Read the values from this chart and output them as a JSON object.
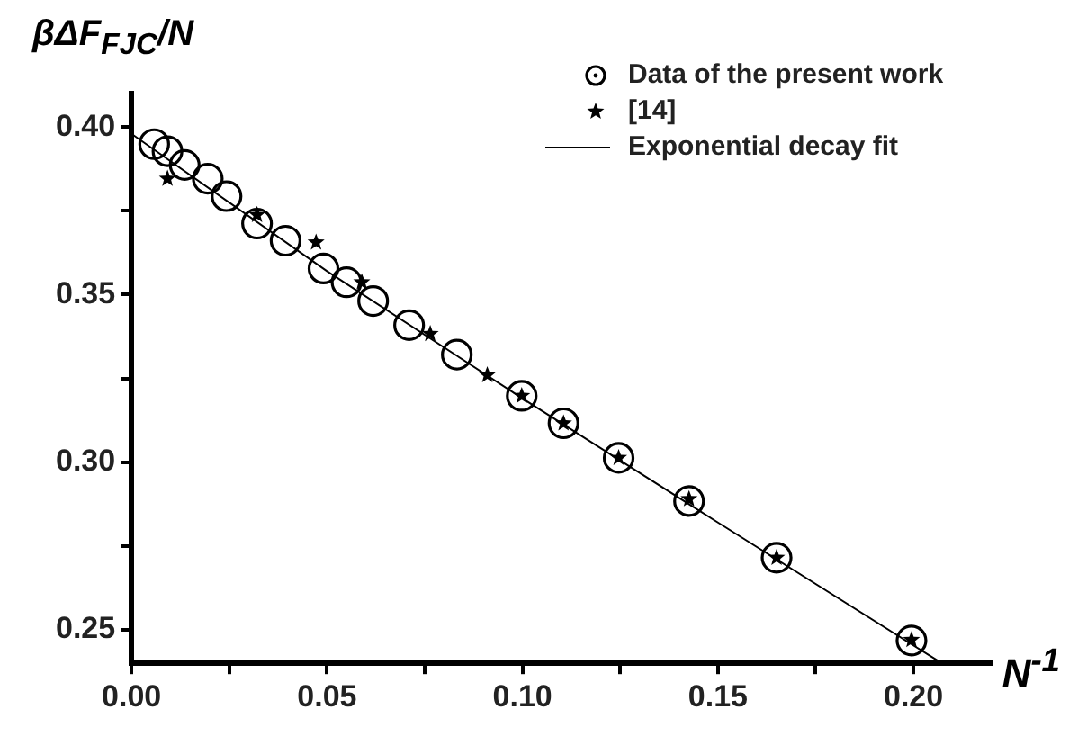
{
  "chart_data": {
    "type": "scatter",
    "xlabel": "N$^{-1}$",
    "ylabel": "βΔF$_{FJC}$/N",
    "xlim": [
      0,
      0.22
    ],
    "ylim": [
      0.24,
      0.41
    ],
    "xticks": [
      {
        "value": 0,
        "label": "0.00"
      },
      {
        "value": 0.025,
        "label": null
      },
      {
        "value": 0.05,
        "label": "0.05"
      },
      {
        "value": 0.075,
        "label": null
      },
      {
        "value": 0.1,
        "label": "0.10"
      },
      {
        "value": 0.125,
        "label": null
      },
      {
        "value": 0.15,
        "label": "0.15"
      },
      {
        "value": 0.175,
        "label": null
      },
      {
        "value": 0.2,
        "label": "0.20"
      }
    ],
    "yticks": [
      {
        "value": 0.25,
        "label": "0.25"
      },
      {
        "value": 0.275,
        "label": null
      },
      {
        "value": 0.3,
        "label": "0.30"
      },
      {
        "value": 0.325,
        "label": null
      },
      {
        "value": 0.35,
        "label": "0.35"
      },
      {
        "value": 0.375,
        "label": null
      },
      {
        "value": 0.4,
        "label": "0.40"
      }
    ],
    "grid": false,
    "legend": "top right",
    "series": [
      {
        "name": "Data of the present work",
        "type": "scatter",
        "marker": "circle",
        "color": "#000000",
        "x": [
          0.0058,
          0.0092,
          0.0136,
          0.0195,
          0.0243,
          0.0321,
          0.0394,
          0.0491,
          0.055,
          0.0618,
          0.071,
          0.0832,
          0.0998,
          0.1105,
          0.1246,
          0.1426,
          0.165,
          0.1995
        ],
        "values": [
          0.3949,
          0.3928,
          0.3887,
          0.3846,
          0.3794,
          0.3712,
          0.3661,
          0.3578,
          0.3537,
          0.3481,
          0.3409,
          0.3321,
          0.3198,
          0.3116,
          0.3013,
          0.2884,
          0.2715,
          0.2468
        ]
      },
      {
        "name": "[14]",
        "type": "scatter",
        "marker": "star",
        "color": "#000000",
        "x": [
          0.0092,
          0.0321,
          0.0472,
          0.0589,
          0.0764,
          0.091,
          0.0998,
          0.1105,
          0.1246,
          0.1426,
          0.165,
          0.1995
        ],
        "values": [
          0.3846,
          0.3738,
          0.3656,
          0.3537,
          0.3383,
          0.326,
          0.3198,
          0.3116,
          0.3013,
          0.289,
          0.2715,
          0.247
        ]
      },
      {
        "name": "Exponential decay fit",
        "type": "line",
        "marker": "none",
        "line_style": "solid",
        "color": "#000000",
        "x": [
          0,
          0.05,
          0.1,
          0.15,
          0.2073
        ],
        "values": [
          0.398,
          0.357,
          0.319,
          0.282,
          0.24
        ]
      }
    ]
  }
}
